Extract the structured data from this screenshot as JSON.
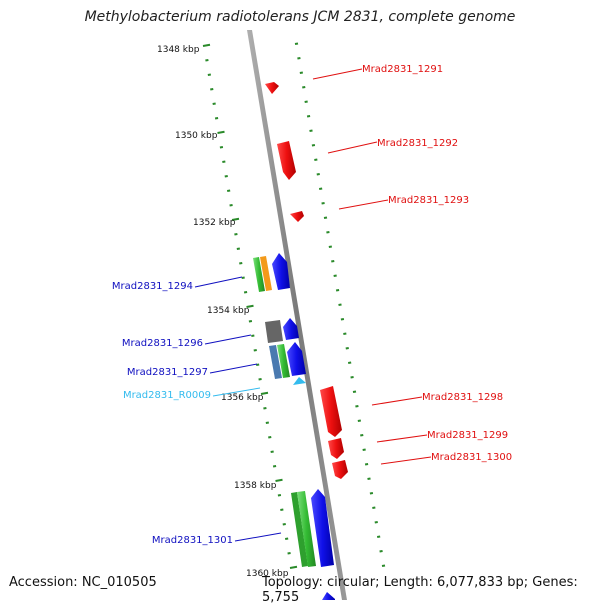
{
  "title": "Methylobacterium radiotolerans JCM 2831, complete genome",
  "accession": "Accession: NC_010505",
  "summary": "Topology: circular; Length: 6,077,833 bp; Genes: 5,755",
  "colors": {
    "forward": "#1010e0",
    "reverse": "#e01010",
    "rna": "#33bbee",
    "tick": "#2a8a2a",
    "backbone": "#8a8a8a",
    "cog_green": "#33bb33",
    "cog_orange": "#f39a1a",
    "cog_gray": "#666666",
    "cog_steel": "#4a7ab0"
  },
  "ruler": {
    "labels": [
      "1348 kbp",
      "1350 kbp",
      "1352 kbp",
      "1354 kbp",
      "1356 kbp",
      "1358 kbp",
      "1360 kbp"
    ]
  },
  "genes": [
    {
      "id": "Mrad2831_1291",
      "strand": "reverse"
    },
    {
      "id": "Mrad2831_1292",
      "strand": "reverse"
    },
    {
      "id": "Mrad2831_1293",
      "strand": "reverse"
    },
    {
      "id": "Mrad2831_1294",
      "strand": "forward"
    },
    {
      "id": "Mrad2831_1296",
      "strand": "forward"
    },
    {
      "id": "Mrad2831_1297",
      "strand": "forward"
    },
    {
      "id": "Mrad2831_R0009",
      "strand": "rna"
    },
    {
      "id": "Mrad2831_1298",
      "strand": "reverse"
    },
    {
      "id": "Mrad2831_1299",
      "strand": "reverse"
    },
    {
      "id": "Mrad2831_1300",
      "strand": "reverse"
    },
    {
      "id": "Mrad2831_1301",
      "strand": "forward"
    }
  ]
}
